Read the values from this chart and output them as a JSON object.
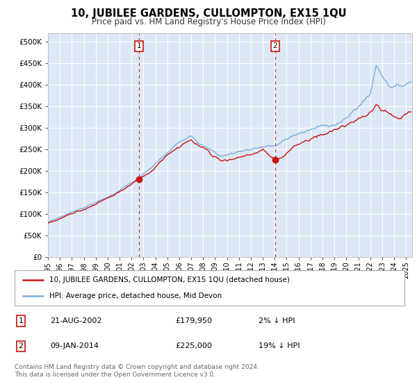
{
  "title": "10, JUBILEE GARDENS, CULLOMPTON, EX15 1QU",
  "subtitle": "Price paid vs. HM Land Registry's House Price Index (HPI)",
  "ylabel_ticks": [
    "£0",
    "£50K",
    "£100K",
    "£150K",
    "£200K",
    "£250K",
    "£300K",
    "£350K",
    "£400K",
    "£450K",
    "£500K"
  ],
  "ylim": [
    0,
    520000
  ],
  "ytick_vals": [
    0,
    50000,
    100000,
    150000,
    200000,
    250000,
    300000,
    350000,
    400000,
    450000,
    500000
  ],
  "hpi_color": "#7aacda",
  "price_color": "#cc1111",
  "marker1_year": 2002.62,
  "marker2_year": 2014.03,
  "marker1_price": 179950,
  "marker2_price": 225000,
  "marker1_label": "1",
  "marker2_label": "2",
  "legend_line1": "10, JUBILEE GARDENS, CULLOMPTON, EX15 1QU (detached house)",
  "legend_line2": "HPI: Average price, detached house, Mid Devon",
  "table_row1": [
    "1",
    "21-AUG-2002",
    "£179,950",
    "2% ↓ HPI"
  ],
  "table_row2": [
    "2",
    "09-JAN-2014",
    "£225,000",
    "19% ↓ HPI"
  ],
  "footnote": "Contains HM Land Registry data © Crown copyright and database right 2024.\nThis data is licensed under the Open Government Licence v3.0.",
  "plot_bg_color": "#dce8f5",
  "grid_color": "#ffffff",
  "fig_bg_color": "#ffffff",
  "start_year": 1995,
  "end_year": 2025
}
